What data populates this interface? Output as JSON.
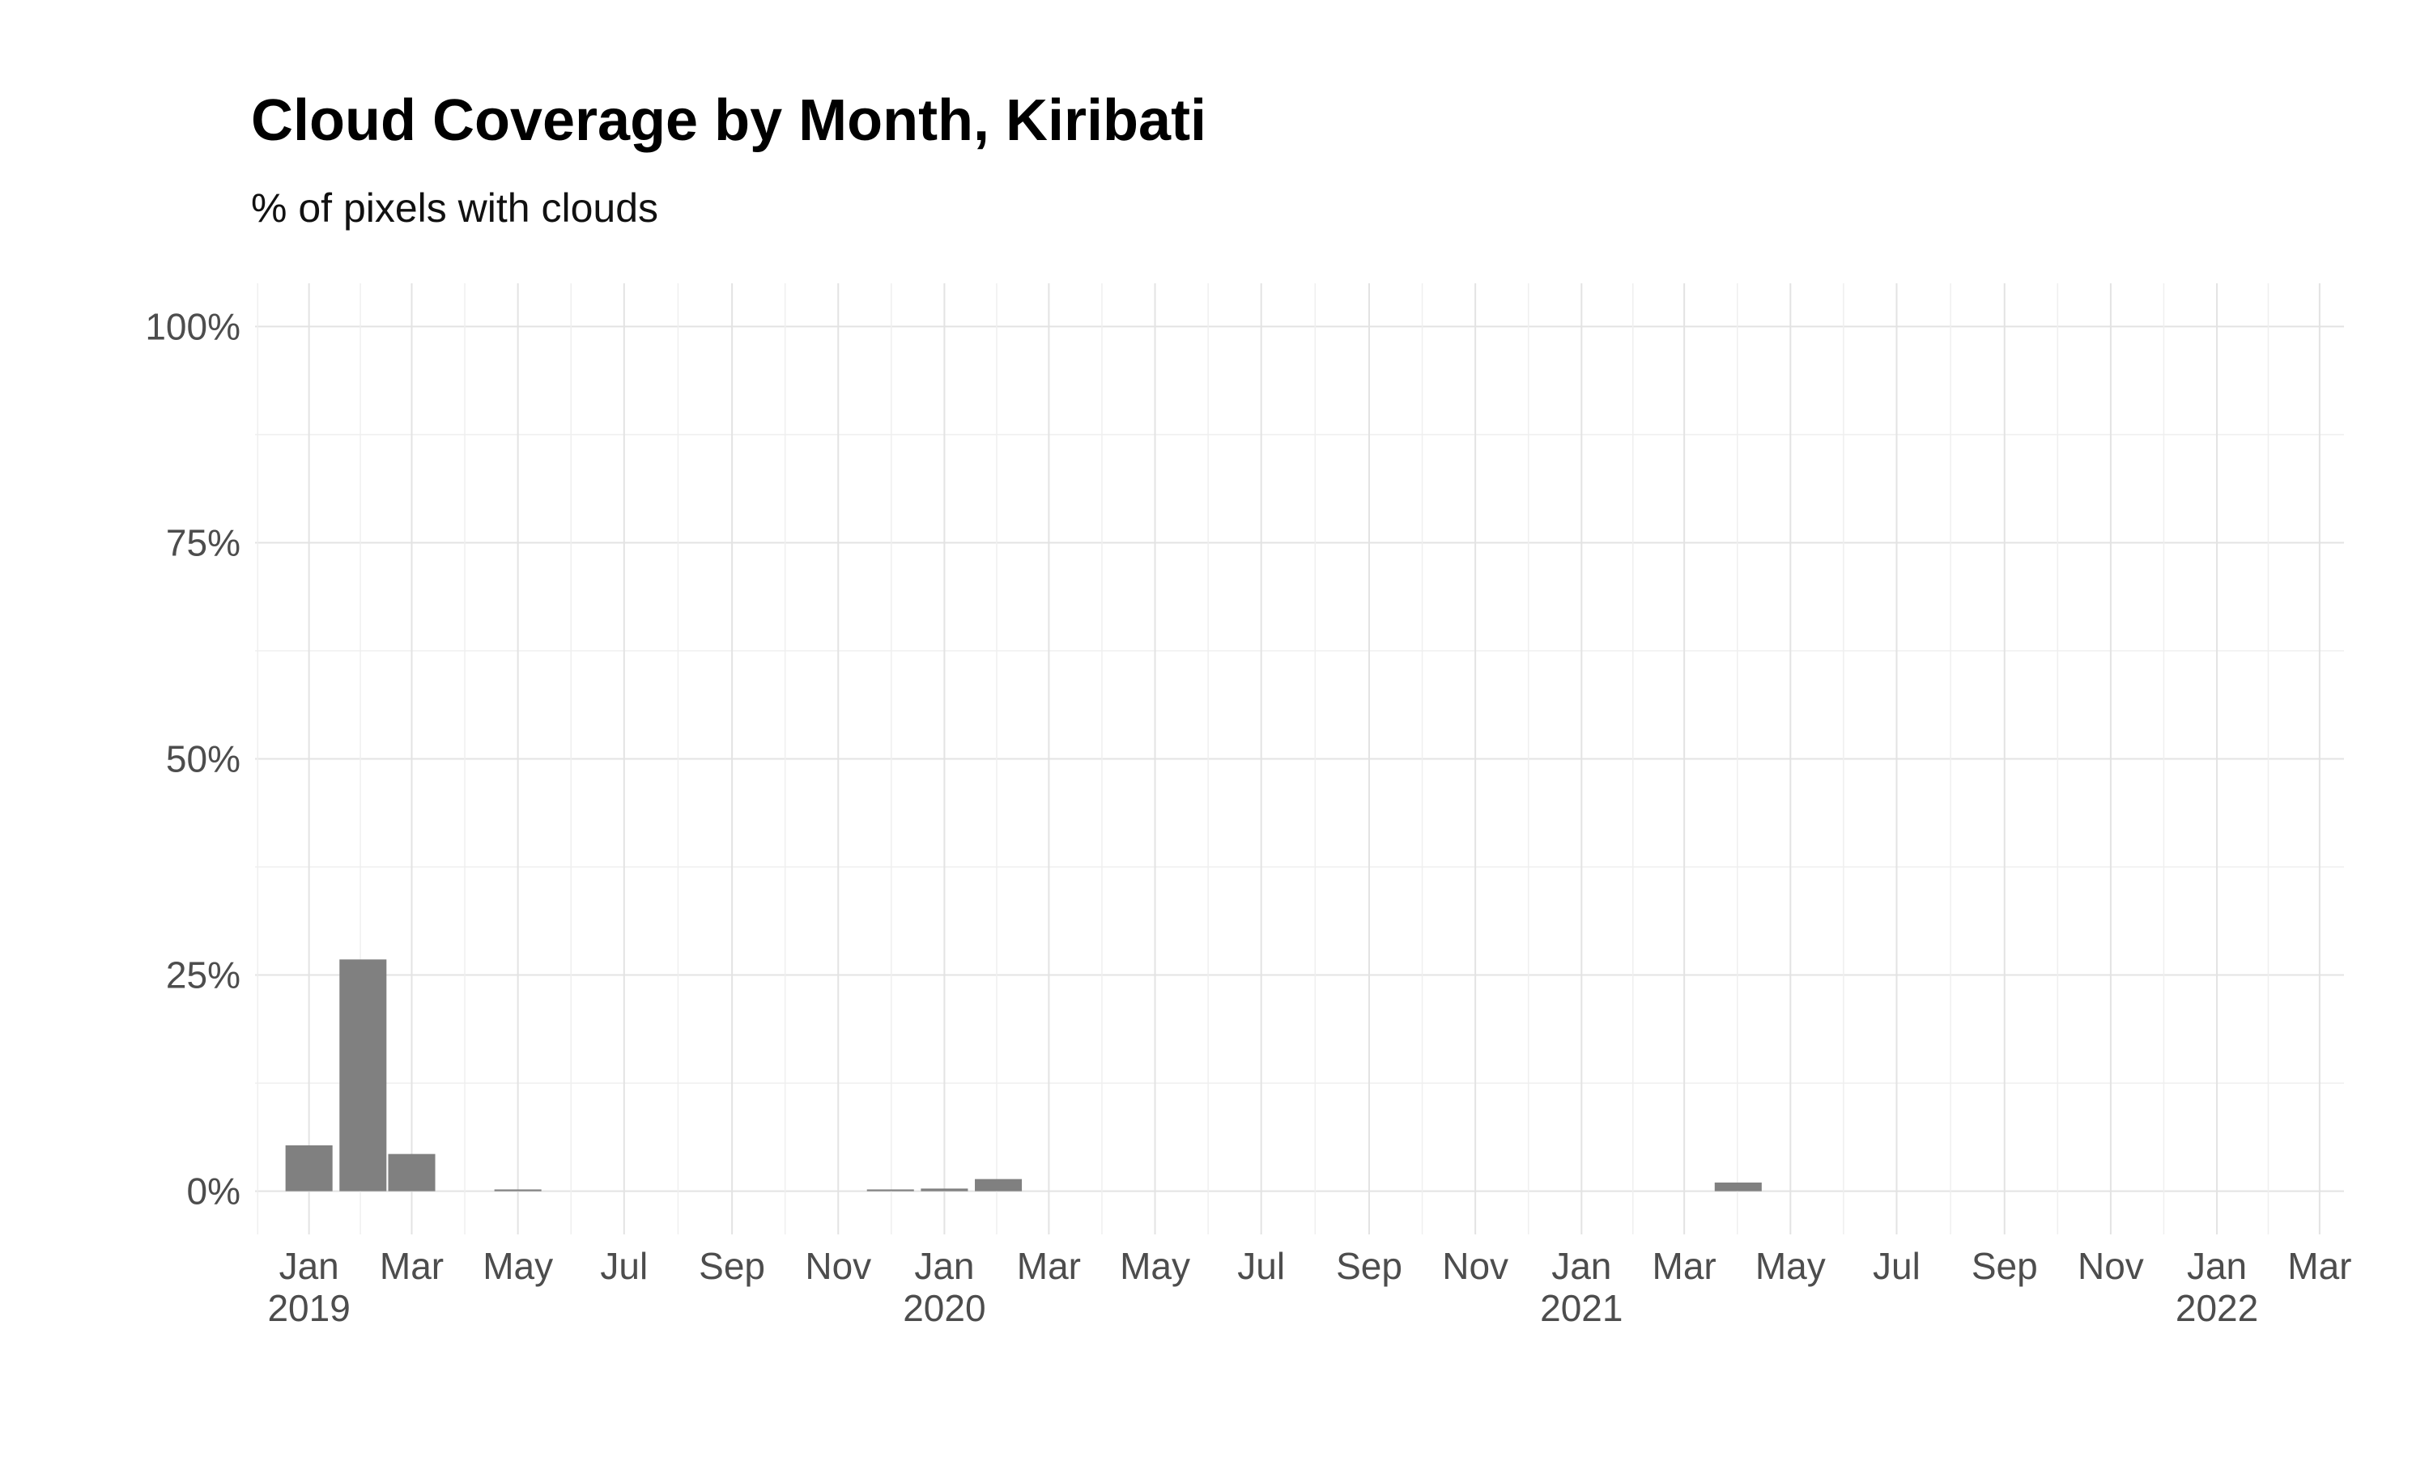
{
  "chart_data": {
    "type": "bar",
    "title": "Cloud Coverage by Month, Kiribati",
    "subtitle": "% of pixels with clouds",
    "xlabel": "",
    "ylabel": "",
    "ylim": [
      -5,
      105
    ],
    "y_ticks": [
      0,
      25,
      50,
      75,
      100
    ],
    "y_tick_labels": [
      "0%",
      "25%",
      "50%",
      "75%",
      "100%"
    ],
    "x_range": [
      "2018-12-01",
      "2022-03-15"
    ],
    "x_ticks": [
      {
        "date": "2019-01-01",
        "label": "Jan",
        "year": "2019"
      },
      {
        "date": "2019-03-01",
        "label": "Mar",
        "year": ""
      },
      {
        "date": "2019-05-01",
        "label": "May",
        "year": ""
      },
      {
        "date": "2019-07-01",
        "label": "Jul",
        "year": ""
      },
      {
        "date": "2019-09-01",
        "label": "Sep",
        "year": ""
      },
      {
        "date": "2019-11-01",
        "label": "Nov",
        "year": ""
      },
      {
        "date": "2020-01-01",
        "label": "Jan",
        "year": "2020"
      },
      {
        "date": "2020-03-01",
        "label": "Mar",
        "year": ""
      },
      {
        "date": "2020-05-01",
        "label": "May",
        "year": ""
      },
      {
        "date": "2020-07-01",
        "label": "Jul",
        "year": ""
      },
      {
        "date": "2020-09-01",
        "label": "Sep",
        "year": ""
      },
      {
        "date": "2020-11-01",
        "label": "Nov",
        "year": ""
      },
      {
        "date": "2021-01-01",
        "label": "Jan",
        "year": "2021"
      },
      {
        "date": "2021-03-01",
        "label": "Mar",
        "year": ""
      },
      {
        "date": "2021-05-01",
        "label": "May",
        "year": ""
      },
      {
        "date": "2021-07-01",
        "label": "Jul",
        "year": ""
      },
      {
        "date": "2021-09-01",
        "label": "Sep",
        "year": ""
      },
      {
        "date": "2021-11-01",
        "label": "Nov",
        "year": ""
      },
      {
        "date": "2022-01-01",
        "label": "Jan",
        "year": "2022"
      },
      {
        "date": "2022-03-01",
        "label": "Mar",
        "year": ""
      }
    ],
    "bars": [
      {
        "date": "2019-01-01",
        "value": 5.3
      },
      {
        "date": "2019-02-01",
        "value": 26.8
      },
      {
        "date": "2019-03-01",
        "value": 4.3
      },
      {
        "date": "2019-05-01",
        "value": 0.2
      },
      {
        "date": "2019-12-01",
        "value": 0.2
      },
      {
        "date": "2020-01-01",
        "value": 0.3
      },
      {
        "date": "2020-02-01",
        "value": 1.4
      },
      {
        "date": "2021-04-01",
        "value": 1.0
      }
    ],
    "bar_color": "#808080",
    "grid": true
  }
}
